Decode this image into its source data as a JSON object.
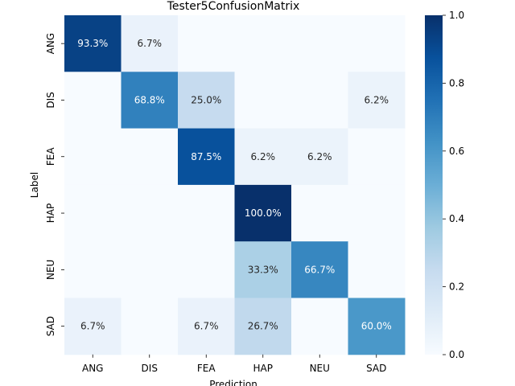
{
  "chart_data": {
    "type": "heatmap",
    "title": "Tester5ConfusionMatrix",
    "xlabel": "Prediction",
    "ylabel": "Label",
    "x_categories": [
      "ANG",
      "DIS",
      "FEA",
      "HAP",
      "NEU",
      "SAD"
    ],
    "y_categories": [
      "ANG",
      "DIS",
      "FEA",
      "HAP",
      "NEU",
      "SAD"
    ],
    "values": [
      [
        0.933,
        0.067,
        0.0,
        0.0,
        0.0,
        0.0
      ],
      [
        0.0,
        0.688,
        0.25,
        0.0,
        0.0,
        0.062
      ],
      [
        0.0,
        0.0,
        0.875,
        0.062,
        0.062,
        0.0
      ],
      [
        0.0,
        0.0,
        0.0,
        1.0,
        0.0,
        0.0
      ],
      [
        0.0,
        0.0,
        0.0,
        0.333,
        0.667,
        0.0
      ],
      [
        0.067,
        0.0,
        0.067,
        0.267,
        0.0,
        0.6
      ]
    ],
    "cell_labels": [
      [
        "93.3%",
        "6.7%",
        "",
        "",
        "",
        ""
      ],
      [
        "",
        "68.8%",
        "25.0%",
        "",
        "",
        "6.2%"
      ],
      [
        "",
        "",
        "87.5%",
        "6.2%",
        "6.2%",
        ""
      ],
      [
        "",
        "",
        "",
        "100.0%",
        "",
        ""
      ],
      [
        "",
        "",
        "",
        "33.3%",
        "66.7%",
        ""
      ],
      [
        "6.7%",
        "",
        "6.7%",
        "26.7%",
        "",
        "60.0%"
      ]
    ],
    "colorbar": {
      "range": [
        0.0,
        1.0
      ],
      "ticks": [
        "0.0",
        "0.2",
        "0.4",
        "0.6",
        "0.8",
        "1.0"
      ],
      "colormap": "Blues"
    }
  }
}
